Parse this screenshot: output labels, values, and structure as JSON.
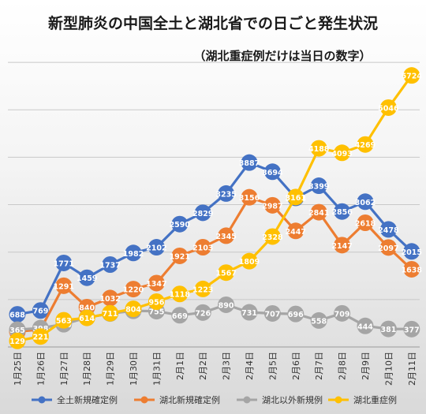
{
  "chart_data": {
    "type": "line",
    "title": "新型肺炎の中国全土と湖北省での日ごと発生状況",
    "subtitle": "（湖北重症例だけは当日の数字）",
    "xlabel": "",
    "ylabel": "",
    "ylim": [
      0,
      6400
    ],
    "grid": true,
    "legend": "bottom",
    "categories": [
      "1月25日",
      "1月26日",
      "1月27日",
      "1月28日",
      "1月29日",
      "1月30日",
      "1月31日",
      "2月1日",
      "2月2日",
      "2月3日",
      "2月4日",
      "2月5日",
      "2月6日",
      "2月7日",
      "2月8日",
      "2月9日",
      "2月10日",
      "2月11日"
    ],
    "series": [
      {
        "name": "全土新規確定例",
        "color": "#4472C4",
        "values": [
          688,
          769,
          1771,
          1459,
          1737,
          1982,
          2102,
          2590,
          2829,
          3235,
          3887,
          3694,
          3143,
          3399,
          2856,
          3062,
          2478,
          2015
        ]
      },
      {
        "name": "湖北新規確定例",
        "color": "#ED7D31",
        "values": [
          323,
          371,
          1291,
          840,
          1032,
          1220,
          1347,
          1921,
          2103,
          2345,
          3156,
          2987,
          2447,
          2841,
          2147,
          2618,
          2097,
          1638
        ]
      },
      {
        "name": "湖北以外新規例",
        "color": "#A5A5A5",
        "values": [
          365,
          398,
          480,
          619,
          705,
          762,
          755,
          669,
          726,
          890,
          731,
          707,
          696,
          558,
          709,
          444,
          381,
          377
        ]
      },
      {
        "name": "湖北重症例",
        "color": "#FFC000",
        "values": [
          129,
          221,
          563,
          614,
          711,
          804,
          956,
          1118,
          1223,
          1567,
          1809,
          2328,
          3161,
          4188,
          4093,
          4269,
          5046,
          5724
        ]
      }
    ]
  }
}
